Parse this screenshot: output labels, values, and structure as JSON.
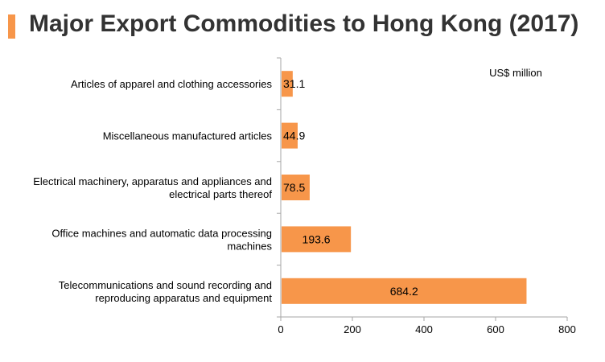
{
  "title": "Major Export Commodities to Hong Kong (2017)",
  "colors": {
    "accent": "#f7964a",
    "bar": "#f7964a",
    "axis": "#a6a6a6",
    "title": "#333333"
  },
  "chart_data": {
    "type": "bar",
    "orientation": "horizontal",
    "unit_label": "US$ million",
    "categories": [
      [
        "Articles of apparel and clothing accessories"
      ],
      [
        "Miscellaneous manufactured articles"
      ],
      [
        "Electrical machinery, apparatus and appliances and",
        "electrical parts thereof"
      ],
      [
        "Office machines and automatic data processing",
        "machines"
      ],
      [
        "Telecommunications and sound recording and",
        "reproducing apparatus and equipment"
      ]
    ],
    "values": [
      31.1,
      44.9,
      78.5,
      193.6,
      684.2
    ],
    "value_labels": [
      "31.1",
      "44.9",
      "78.5",
      "193.6",
      "684.2"
    ],
    "xlim": [
      0,
      800
    ],
    "xticks": [
      0,
      200,
      400,
      600,
      800
    ],
    "grid": false,
    "legend": "none"
  }
}
